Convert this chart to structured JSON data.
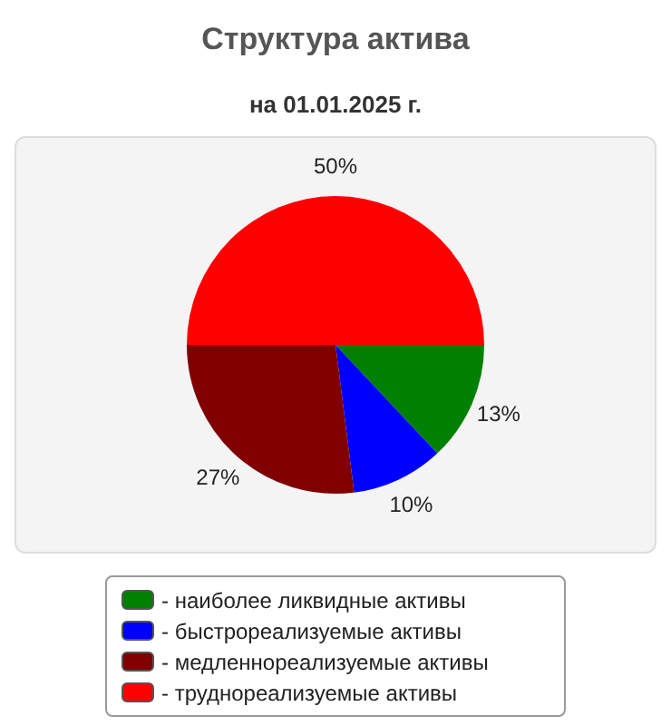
{
  "chart_data": {
    "type": "pie",
    "title": "Структура актива",
    "subtitle": "на 01.01.2025 г.",
    "categories": [
      "- наиболее ликвидные активы",
      "- быстрореализуемые активы",
      "- медленнореализуемые активы",
      "- труднореализуемые активы"
    ],
    "values": [
      13,
      10,
      27,
      50
    ],
    "value_labels": [
      "13%",
      "10%",
      "27%",
      "50%"
    ],
    "colors": [
      "#008000",
      "#0000ff",
      "#800000",
      "#ff0000"
    ],
    "legend": "bottom"
  }
}
